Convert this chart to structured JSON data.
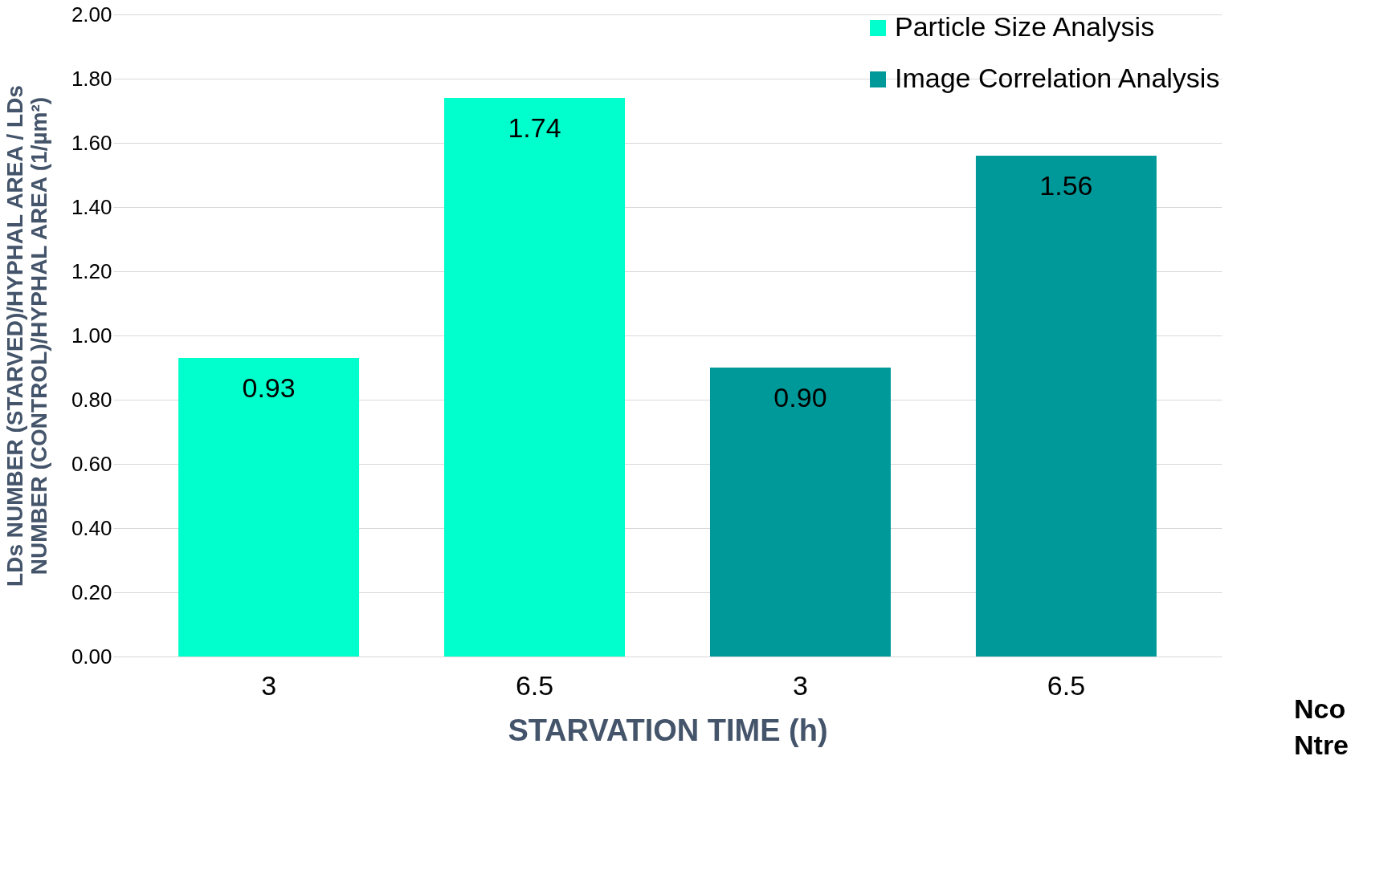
{
  "chart_data": {
    "type": "bar",
    "xlabel": "STARVATION TIME (h)",
    "ylabel": "LDs NUMBER (STARVED)/HYPHAL AREA / LDs\nNUMBER (CONTROL)/HYPHAL AREA  (1/µm²)",
    "categories": [
      "3",
      "6.5",
      "3",
      "6.5"
    ],
    "series": [
      {
        "name": "Particle Size Analysis",
        "color": "#00ffcc",
        "values": [
          0.93,
          1.74,
          null,
          null
        ]
      },
      {
        "name": "Image Correlation Analysis",
        "color": "#009999",
        "values": [
          null,
          null,
          0.9,
          1.56
        ]
      }
    ],
    "ylim": [
      0,
      2
    ],
    "yticks": [
      {
        "value": 0,
        "label": "0.00"
      },
      {
        "value": 0.2,
        "label": "0.20"
      },
      {
        "value": 0.4,
        "label": "0.40"
      },
      {
        "value": 0.6,
        "label": "0.60"
      },
      {
        "value": 0.8,
        "label": "0.80"
      },
      {
        "value": 1,
        "label": "1.00"
      },
      {
        "value": 1.2,
        "label": "1.20"
      },
      {
        "value": 1.4,
        "label": "1.40"
      },
      {
        "value": 1.6,
        "label": "1.60"
      },
      {
        "value": 1.8,
        "label": "1.80"
      },
      {
        "value": 2,
        "label": "2.00"
      }
    ],
    "grid": "y",
    "legend": "top right",
    "value_labels": [
      "0.93",
      "1.74",
      "0.90",
      "1.56"
    ],
    "annotations": [
      "Nco",
      "Ntre"
    ]
  }
}
